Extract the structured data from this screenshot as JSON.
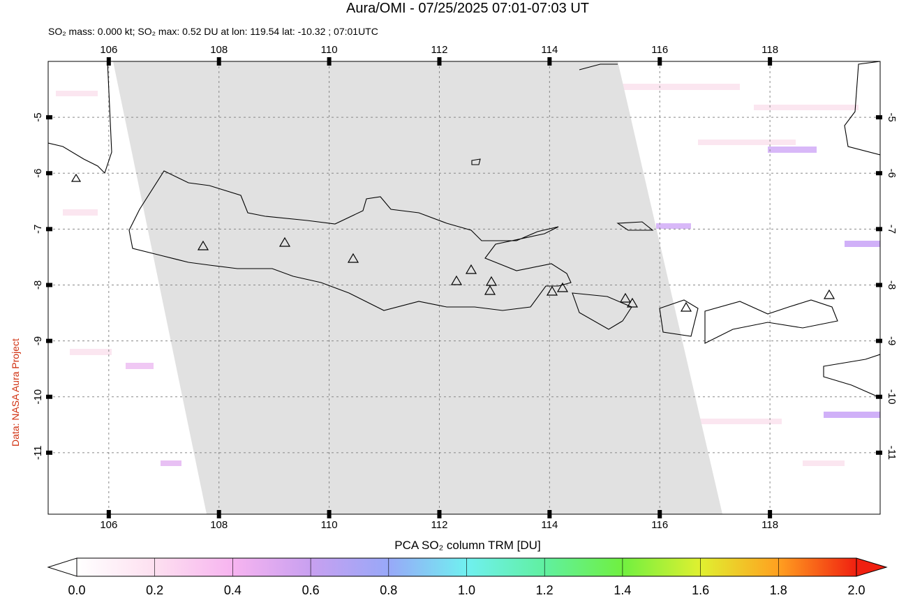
{
  "chart_data": {
    "type": "map",
    "title": "Aura/OMI - 07/25/2025 07:01-07:03 UT",
    "subtitle": "SO₂ mass: 0.000 kt; SO₂ max: 0.52 DU at lon: 119.54 lat: -10.32 ; 07:01UTC",
    "credit": "Data: NASA Aura Project",
    "xlim": [
      104.9,
      120.0
    ],
    "ylim": [
      -12.1,
      -4.0
    ],
    "xticks": [
      106,
      108,
      110,
      112,
      114,
      116,
      118
    ],
    "yticks": [
      -5,
      -6,
      -7,
      -8,
      -9,
      -10,
      -11
    ],
    "grid": true,
    "colorbar": {
      "label": "PCA SO₂ column TRM [DU]",
      "lim": [
        0,
        2
      ],
      "ticks": [
        {
          "value": 0,
          "label": "0.0"
        },
        {
          "value": 0.2,
          "label": "0.2"
        },
        {
          "value": 0.4,
          "label": "0.4"
        },
        {
          "value": 0.6,
          "label": "0.6"
        },
        {
          "value": 0.8,
          "label": "0.8"
        },
        {
          "value": 1,
          "label": "1.0"
        },
        {
          "value": 1.2,
          "label": "1.2"
        },
        {
          "value": 1.4,
          "label": "1.4"
        },
        {
          "value": 1.6,
          "label": "1.6"
        },
        {
          "value": 1.8,
          "label": "1.8"
        },
        {
          "value": 2,
          "label": "2.0"
        }
      ]
    }
  }
}
